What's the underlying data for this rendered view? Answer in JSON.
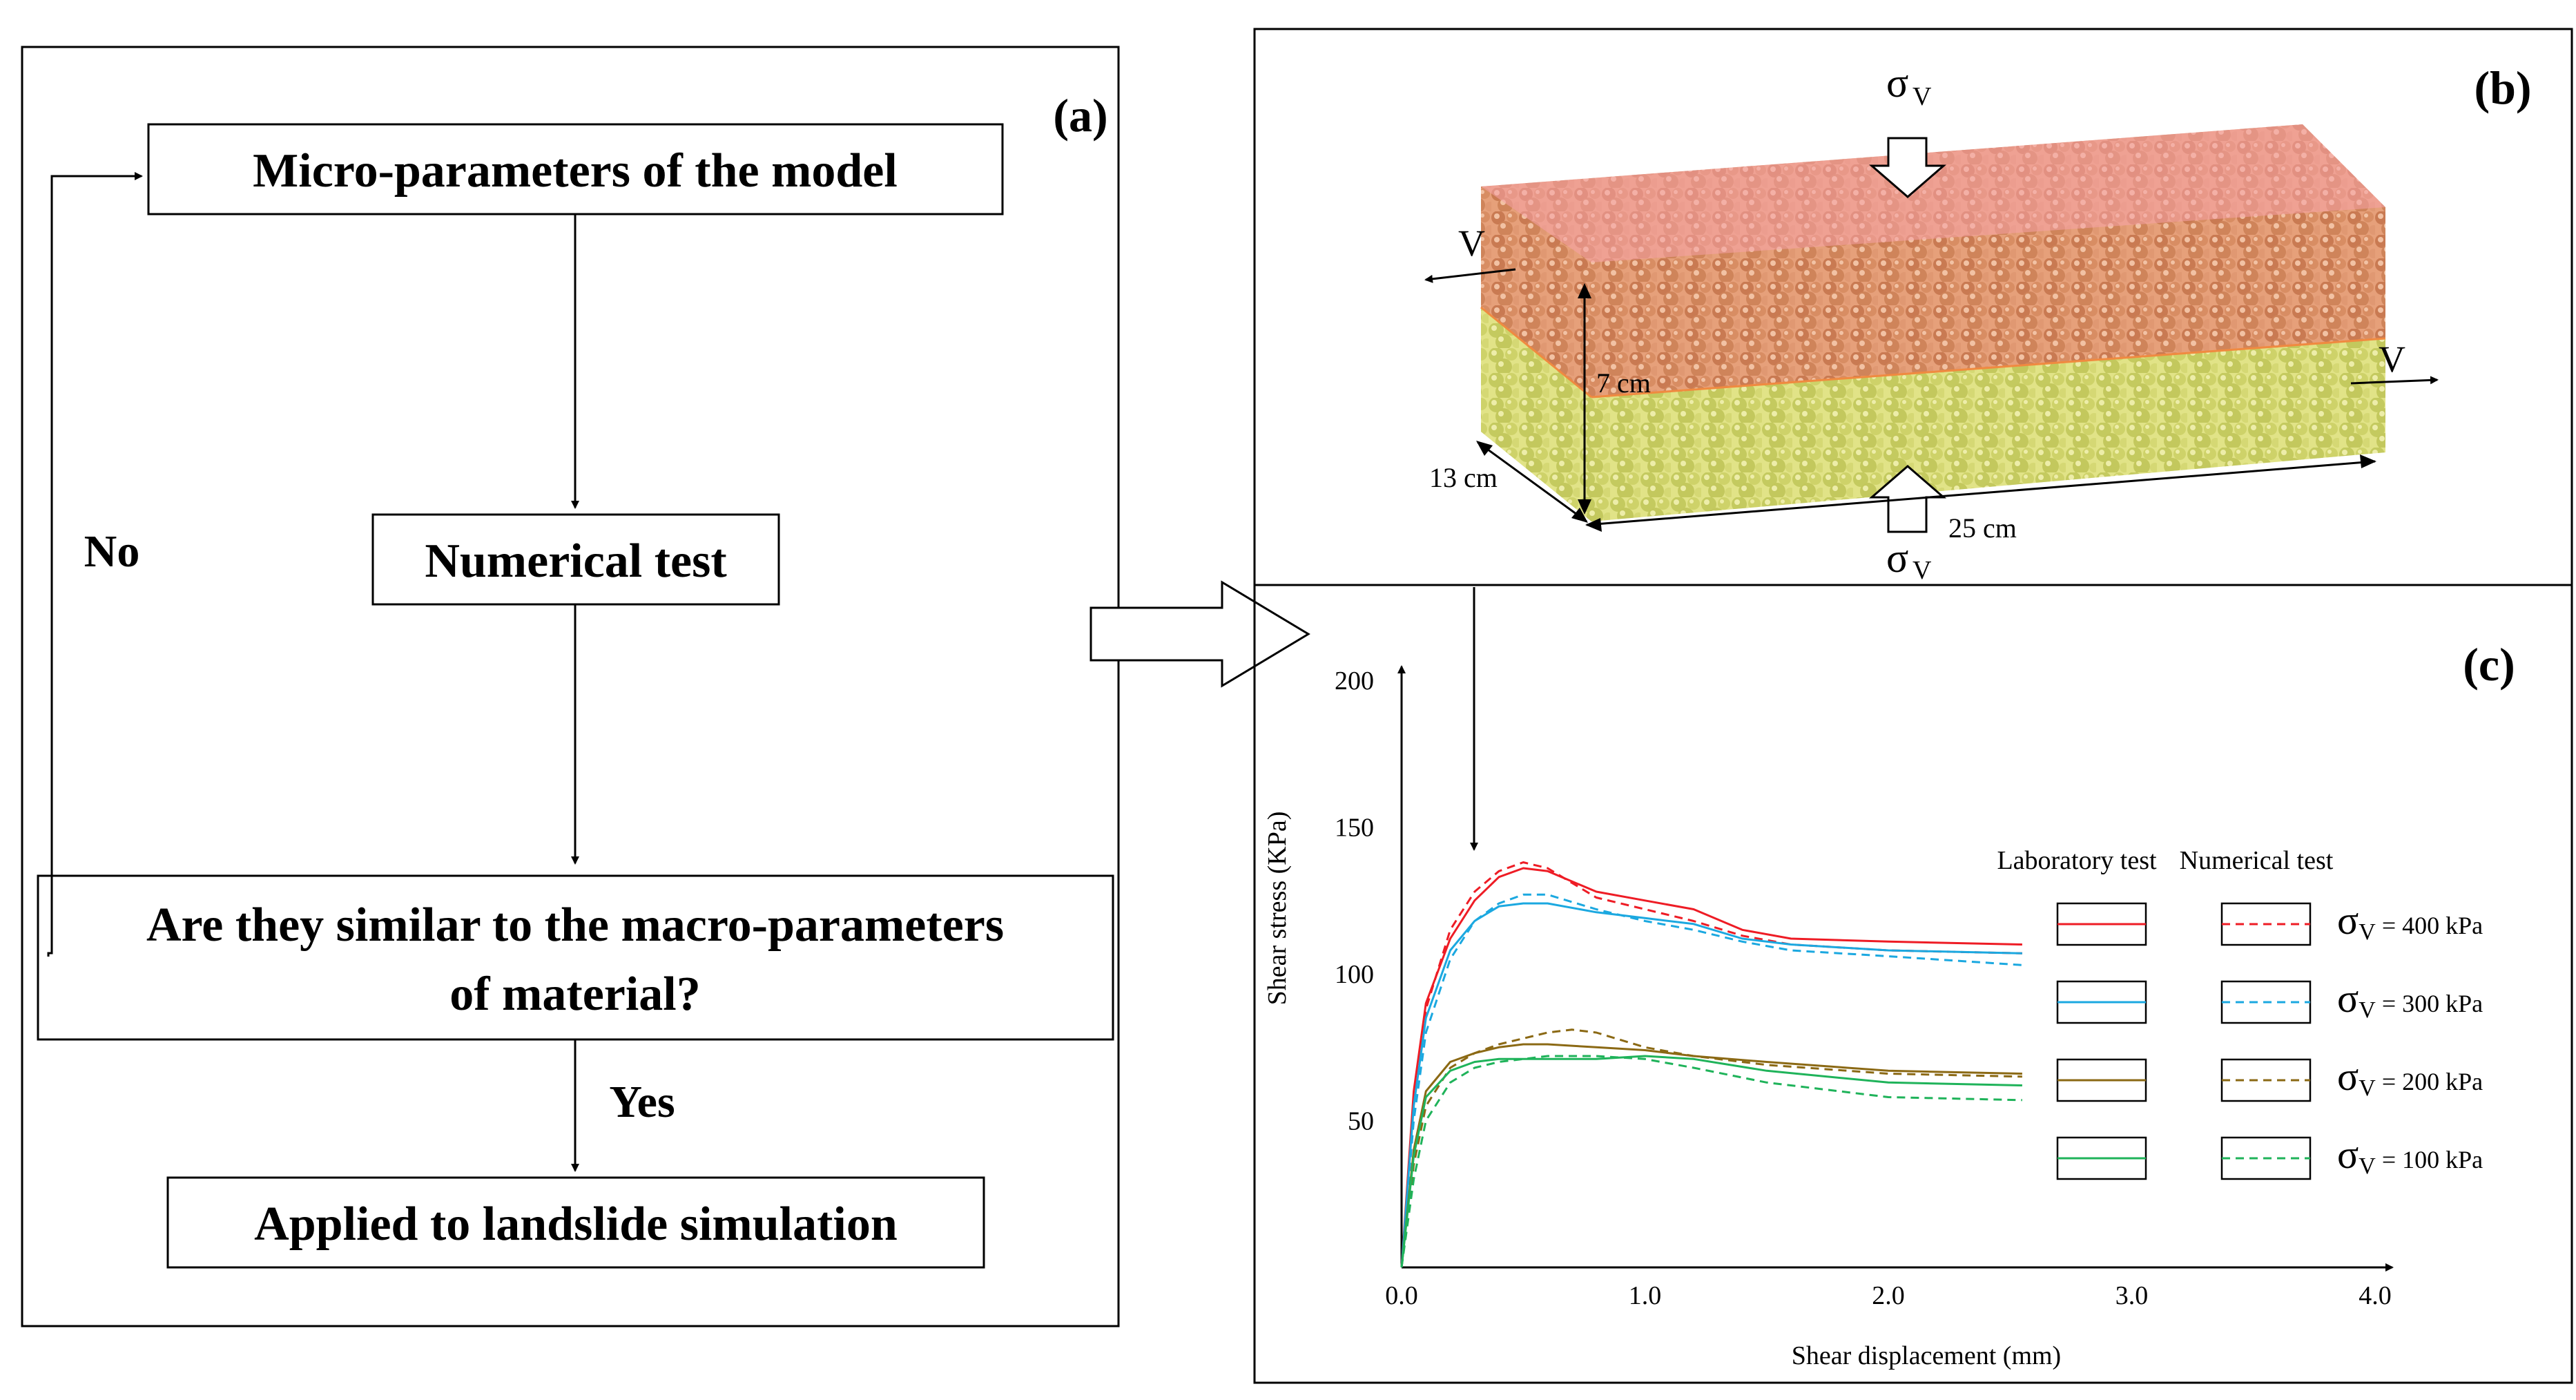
{
  "panel_a": {
    "label": "(a)",
    "box1": "Micro-parameters of the model",
    "box2": "Numerical test",
    "box3_line1": "Are they similar to the macro-parameters",
    "box3_line2": "of material?",
    "box4": "Applied to landslide simulation",
    "no_label": "No",
    "yes_label": "Yes"
  },
  "panel_b": {
    "label": "(b)",
    "sigma_top": "σ",
    "sigma_top_sub": "V",
    "sigma_bottom": "σ",
    "sigma_bottom_sub": "V",
    "v_left": "V",
    "v_right": "V",
    "dim_height": "7 cm",
    "dim_depth": "13 cm",
    "dim_length": "25 cm",
    "colors": {
      "top_box": "#f5a3a8",
      "top_particles": "#d9885e",
      "bottom_box": "#f5f0a0",
      "bottom_particles": "#b8c24a"
    }
  },
  "panel_c": {
    "label": "(c)",
    "legend_lab_header": "Laboratory test",
    "legend_num_header": "Numerical test"
  },
  "chart_data": {
    "type": "line",
    "title": "",
    "xlabel": "Shear displacement (mm)",
    "ylabel": "Shear stress (KPa)",
    "xlim": [
      0,
      4.0
    ],
    "ylim": [
      0,
      200
    ],
    "x_ticks": [
      "0.0",
      "1.0",
      "2.0",
      "3.0",
      "4.0"
    ],
    "y_ticks": [
      "50",
      "100",
      "150",
      "200"
    ],
    "series": [
      {
        "name": "σV = 400 kPa laboratory",
        "legend": "σV = 400  kPa",
        "legend_sigma": "σ",
        "legend_sub": "V",
        "legend_rest": " = 400  kPa",
        "color": "#ee1c25",
        "style": "solid",
        "x": [
          0,
          0.05,
          0.1,
          0.2,
          0.3,
          0.4,
          0.5,
          0.6,
          0.8,
          1.0,
          1.2,
          1.4,
          1.6,
          2.0,
          2.55
        ],
        "y": [
          0,
          60,
          90,
          112,
          125,
          133,
          136,
          135,
          128,
          125,
          122,
          115,
          112,
          111,
          110
        ]
      },
      {
        "name": "σV = 400 kPa numerical",
        "color": "#ee1c25",
        "style": "dashed",
        "x": [
          0,
          0.05,
          0.1,
          0.2,
          0.3,
          0.4,
          0.5,
          0.6,
          0.8,
          1.0,
          1.2,
          1.4,
          1.6,
          2.0,
          2.55
        ],
        "y": [
          0,
          55,
          88,
          115,
          128,
          135,
          138,
          136,
          126,
          122,
          118,
          113,
          110,
          108,
          107
        ]
      },
      {
        "name": "σV = 300 kPa laboratory",
        "legend": "σV = 300  kPa",
        "legend_sigma": "σ",
        "legend_sub": "V",
        "legend_rest": " = 300  kPa",
        "color": "#1ba8e0",
        "style": "solid",
        "x": [
          0,
          0.05,
          0.1,
          0.2,
          0.3,
          0.4,
          0.5,
          0.6,
          0.8,
          1.0,
          1.2,
          1.4,
          1.6,
          2.0,
          2.55
        ],
        "y": [
          0,
          55,
          85,
          108,
          118,
          123,
          124,
          124,
          121,
          119,
          117,
          112,
          110,
          108,
          107
        ]
      },
      {
        "name": "σV = 300 kPa numerical",
        "color": "#1ba8e0",
        "style": "dashed",
        "x": [
          0,
          0.05,
          0.1,
          0.2,
          0.3,
          0.4,
          0.5,
          0.6,
          0.8,
          1.0,
          1.2,
          1.4,
          1.6,
          2.0,
          2.55
        ],
        "y": [
          0,
          50,
          80,
          105,
          118,
          124,
          127,
          127,
          122,
          118,
          115,
          111,
          108,
          106,
          103
        ]
      },
      {
        "name": "σV = 200 kPa laboratory",
        "legend": "σV = 200  kPa",
        "legend_sigma": "σ",
        "legend_sub": "V",
        "legend_rest": " = 200  kPa",
        "color": "#8b6914",
        "style": "solid",
        "x": [
          0,
          0.05,
          0.1,
          0.2,
          0.3,
          0.4,
          0.5,
          0.6,
          0.8,
          1.0,
          1.2,
          1.5,
          2.0,
          2.55
        ],
        "y": [
          0,
          40,
          60,
          70,
          73,
          75,
          76,
          76,
          75,
          74,
          72,
          70,
          67,
          66
        ]
      },
      {
        "name": "σV = 200 kPa numerical",
        "color": "#8b6914",
        "style": "dashed",
        "x": [
          0,
          0.05,
          0.1,
          0.2,
          0.3,
          0.4,
          0.5,
          0.6,
          0.7,
          0.8,
          1.0,
          1.2,
          1.5,
          2.0,
          2.55
        ],
        "y": [
          0,
          35,
          55,
          68,
          73,
          76,
          78,
          80,
          81,
          80,
          75,
          72,
          69,
          66,
          65
        ]
      },
      {
        "name": "σV = 100 kPa laboratory",
        "legend": "σV = 100  kPa",
        "legend_sigma": "σ",
        "legend_sub": "V",
        "legend_rest": " = 100  kPa",
        "color": "#1fb35a",
        "style": "solid",
        "x": [
          0,
          0.05,
          0.1,
          0.2,
          0.3,
          0.4,
          0.5,
          0.6,
          0.8,
          1.0,
          1.2,
          1.5,
          2.0,
          2.55
        ],
        "y": [
          0,
          38,
          58,
          67,
          70,
          71,
          71,
          71,
          71,
          72,
          71,
          67,
          63,
          62
        ]
      },
      {
        "name": "σV = 100 kPa numerical",
        "color": "#1fb35a",
        "style": "dashed",
        "x": [
          0,
          0.05,
          0.1,
          0.2,
          0.3,
          0.4,
          0.5,
          0.6,
          0.8,
          1.0,
          1.2,
          1.5,
          2.0,
          2.55
        ],
        "y": [
          0,
          30,
          50,
          63,
          68,
          70,
          71,
          72,
          72,
          71,
          68,
          63,
          58,
          57
        ]
      }
    ]
  }
}
